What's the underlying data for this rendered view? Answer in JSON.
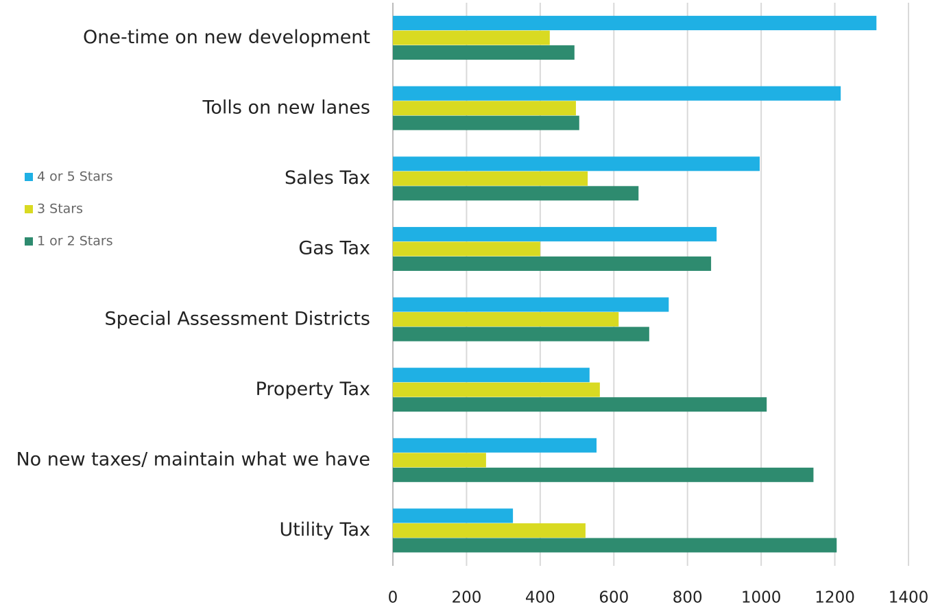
{
  "chart_data": {
    "type": "barh",
    "categories": [
      "One-time on new development",
      "Tolls on new lanes",
      "Sales Tax",
      "Gas Tax",
      "Special Assessment Districts",
      "Property Tax",
      "No new taxes/ maintain what we have",
      "Utility Tax"
    ],
    "series": [
      {
        "name": "4 or 5 Stars",
        "color": "#1fb0e4",
        "values": [
          1313,
          1216,
          996,
          879,
          749,
          534,
          553,
          326
        ]
      },
      {
        "name": "3 Stars",
        "color": "#d9da22",
        "values": [
          426,
          497,
          529,
          400,
          613,
          562,
          253,
          523
        ]
      },
      {
        "name": "1 or 2 Stars",
        "color": "#2e8b6f",
        "values": [
          493,
          506,
          667,
          864,
          696,
          1015,
          1142,
          1205
        ]
      }
    ],
    "xlim": [
      0,
      1400
    ],
    "xticks": [
      0,
      200,
      400,
      600,
      800,
      1000,
      1200,
      1400
    ],
    "grid": true,
    "legend": "left"
  }
}
